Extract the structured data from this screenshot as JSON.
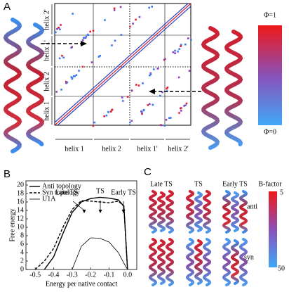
{
  "panel_labels": [
    "A",
    "B",
    "C"
  ],
  "panel_a": {
    "row_labels": [
      "helix 2'",
      "helix 1'",
      "helix 2",
      "helix 1"
    ],
    "col_labels": [
      "helix 1",
      "helix 2",
      "helix 1'",
      "helix 2'"
    ],
    "colorbar": {
      "top": "Φ=1",
      "bottom": "Φ=0"
    }
  },
  "chart_data": {
    "type": "line",
    "x_label": "Energy per native contact",
    "y_label": "Free energy",
    "x": [
      -0.5,
      -0.45,
      -0.4,
      -0.35,
      -0.3,
      -0.25,
      -0.2,
      -0.15,
      -0.1,
      -0.05,
      -0.02,
      0
    ],
    "series": [
      {
        "name": "Anti topology",
        "color": "#000000",
        "style": "solid",
        "width": 1.4,
        "values": [
          null,
          0,
          3,
          8.5,
          13.5,
          16,
          16.8,
          17.1,
          16.9,
          16.5,
          15,
          0
        ]
      },
      {
        "name": "Syn topology",
        "color": "#000000",
        "style": "dashed",
        "width": 1.4,
        "values": [
          0,
          2,
          5,
          10,
          14.2,
          16.3,
          16.2,
          16,
          15.8,
          16.2,
          15,
          0
        ]
      },
      {
        "name": "U1A",
        "color": "#000000",
        "style": "solid",
        "width": 0.8,
        "values": [
          null,
          null,
          null,
          null,
          0,
          5.5,
          7.5,
          7.4,
          6.5,
          4,
          1.5,
          0
        ]
      }
    ],
    "xlim": [
      -0.55,
      0.05
    ],
    "xticks": [
      -0.5,
      -0.4,
      -0.3,
      -0.2,
      -0.1,
      {
        "value": 0,
        "label": "0.0"
      }
    ],
    "ylim": [
      0,
      21
    ],
    "yticks": [
      0,
      2,
      4,
      6,
      8,
      10,
      12,
      14,
      16,
      18,
      20
    ],
    "legend": "upper left",
    "annotations": [
      "Late TS",
      "TS",
      "Early TS"
    ]
  },
  "panel_c": {
    "columns": [
      "Late TS",
      "TS",
      "Early TS"
    ],
    "rows": [
      "anti",
      "syn"
    ],
    "colorbar": {
      "title": "B-factor",
      "top": 5,
      "bottom": 50
    }
  }
}
